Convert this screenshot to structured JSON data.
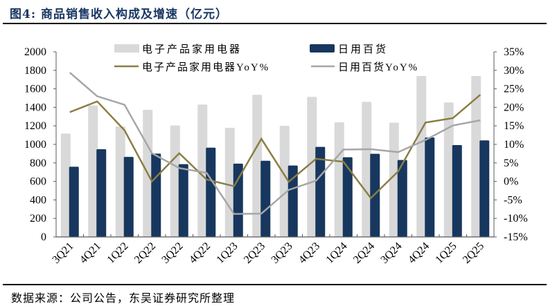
{
  "header": {
    "title": "图4:  商品销售收入构成及增速（亿元）"
  },
  "footer": {
    "source": "数据来源：公司公告，东吴证券研究所整理"
  },
  "colors": {
    "electronics_bar": "#d9d9d9",
    "daily_goods_bar": "#17375e",
    "electronics_yoy_line": "#8b7d45",
    "daily_goods_yoy_line": "#a6a6a6",
    "title": "#1a3763"
  },
  "chart_data": {
    "type": "bar+line",
    "title": "商品销售收入构成及增速（亿元）",
    "categories": [
      "3Q21",
      "4Q21",
      "1Q22",
      "2Q22",
      "3Q22",
      "4Q22",
      "1Q23",
      "2Q23",
      "3Q23",
      "4Q23",
      "1Q24",
      "2Q24",
      "3Q24",
      "4Q24",
      "1Q25",
      "2Q25"
    ],
    "series": [
      {
        "name": "电子产品家用电器",
        "type": "bar",
        "axis": "left",
        "values": [
          1117,
          1420,
          1194,
          1373,
          1204,
          1430,
          1179,
          1535,
          1201,
          1513,
          1239,
          1460,
          1234,
          1739,
          1453,
          1739
        ]
      },
      {
        "name": "日用百货",
        "type": "bar",
        "axis": "left",
        "values": [
          758,
          948,
          865,
          900,
          786,
          965,
          792,
          823,
          771,
          973,
          861,
          898,
          831,
          1075,
          993,
          1043
        ]
      },
      {
        "name": "电子产品家用电器YoY%",
        "type": "line",
        "axis": "right",
        "values": [
          18.7,
          21.6,
          13.8,
          0.0,
          7.6,
          0.5,
          -1.3,
          11.5,
          -0.1,
          6.1,
          5.3,
          -4.5,
          2.7,
          15.9,
          17.1,
          23.4
        ]
      },
      {
        "name": "日用百货YoY%",
        "type": "line",
        "axis": "right",
        "values": [
          29.4,
          23.0,
          20.7,
          7.6,
          3.6,
          2.3,
          -8.8,
          -8.7,
          -2.3,
          0.2,
          8.6,
          8.7,
          7.9,
          11.2,
          15.1,
          16.5
        ]
      }
    ],
    "left_axis": {
      "ylim": [
        0,
        2000
      ],
      "ticks": [
        "0",
        "200",
        "400",
        "600",
        "800",
        "1000",
        "1200",
        "1400",
        "1600",
        "1800",
        "2000"
      ]
    },
    "right_axis": {
      "ylim": [
        -15,
        35
      ],
      "ticks": [
        "-15%",
        "-10%",
        "-5%",
        "0%",
        "5%",
        "10%",
        "15%",
        "20%",
        "25%",
        "30%",
        "35%"
      ]
    },
    "legend": {
      "position": "top-inside",
      "entries": [
        "电子产品家用电器",
        "日用百货",
        "电子产品家用电器YoY%",
        "日用百货YoY%"
      ]
    },
    "grid": false,
    "xlabel": "",
    "ylabel": ""
  }
}
